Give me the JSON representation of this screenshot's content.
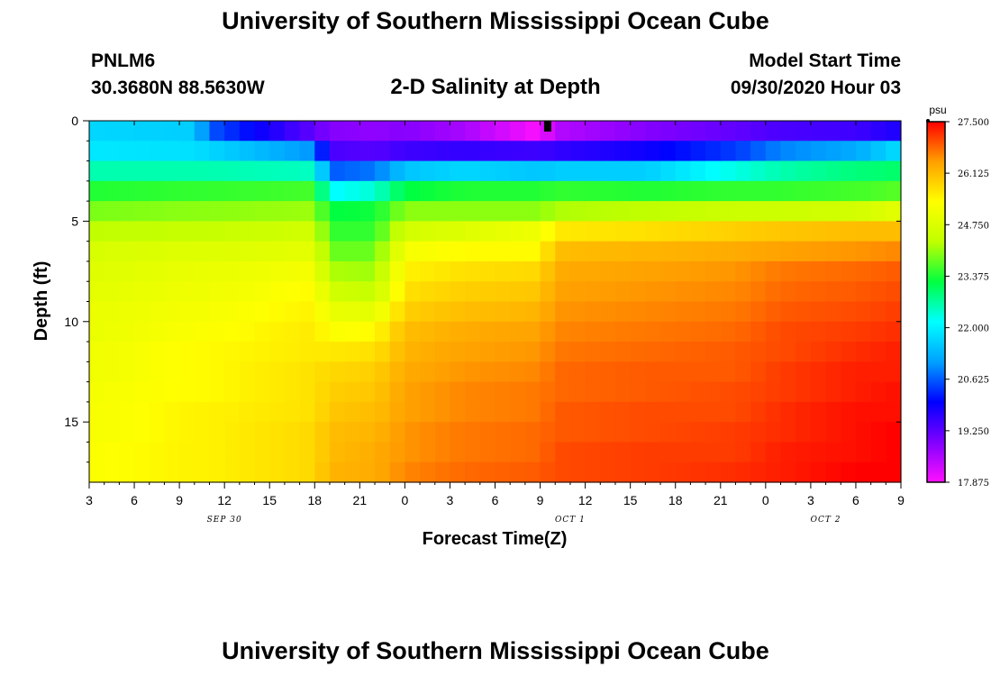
{
  "header": {
    "title": "University of Southern Mississippi Ocean Cube",
    "station_id": "PNLM6",
    "station_coords": "30.3680N 88.5630W",
    "plot_title": "2-D Salinity at Depth",
    "start_label": "Model Start Time",
    "start_value": "09/30/2020 Hour 03"
  },
  "footer": {
    "title": "University of Southern Mississippi Ocean Cube"
  },
  "chart_data": {
    "type": "heatmap",
    "title": "2-D Salinity at Depth",
    "xlabel": "Forecast Time(Z)",
    "ylabel": "Depth (ft)",
    "units": "psu",
    "x_start_hour": 3,
    "x_end_hour": 57,
    "x_ticks": [
      {
        "hour": 3,
        "label": "3"
      },
      {
        "hour": 6,
        "label": "6"
      },
      {
        "hour": 9,
        "label": "9"
      },
      {
        "hour": 12,
        "label": "12"
      },
      {
        "hour": 15,
        "label": "15"
      },
      {
        "hour": 18,
        "label": "18"
      },
      {
        "hour": 21,
        "label": "21"
      },
      {
        "hour": 24,
        "label": "0"
      },
      {
        "hour": 27,
        "label": "3"
      },
      {
        "hour": 30,
        "label": "6"
      },
      {
        "hour": 33,
        "label": "9"
      },
      {
        "hour": 36,
        "label": "12"
      },
      {
        "hour": 39,
        "label": "15"
      },
      {
        "hour": 42,
        "label": "18"
      },
      {
        "hour": 45,
        "label": "21"
      },
      {
        "hour": 48,
        "label": "0"
      },
      {
        "hour": 51,
        "label": "3"
      },
      {
        "hour": 54,
        "label": "6"
      },
      {
        "hour": 57,
        "label": "9"
      }
    ],
    "date_labels": [
      {
        "hour": 12,
        "label": "SEP 30"
      },
      {
        "hour": 35,
        "label": "OCT 1"
      },
      {
        "hour": 52,
        "label": "OCT 2"
      }
    ],
    "ylim": [
      0,
      18
    ],
    "y_ticks": [
      0,
      5,
      10,
      15
    ],
    "depth_levels_ft": [
      0,
      1,
      2,
      3,
      4,
      5,
      6,
      7,
      8,
      9,
      10,
      11,
      12,
      13,
      14,
      15,
      16,
      17
    ],
    "profiles": [
      {
        "hour": 3,
        "values": [
          21.7,
          21.9,
          22.6,
          23.4,
          23.9,
          24.3,
          24.7,
          24.8,
          24.9,
          25.0,
          25.0,
          25.1,
          25.1,
          25.2,
          25.2,
          25.2,
          25.3,
          25.3
        ]
      },
      {
        "hour": 10,
        "values": [
          21.6,
          21.8,
          22.6,
          23.5,
          24.0,
          24.4,
          24.8,
          25.0,
          25.1,
          25.2,
          25.3,
          25.4,
          25.4,
          25.4,
          25.5,
          25.5,
          25.5,
          25.5
        ]
      },
      {
        "hour": 11,
        "values": [
          20.6,
          21.7,
          22.6,
          23.5,
          24.0,
          24.4,
          24.8,
          25.0,
          25.1,
          25.2,
          25.3,
          25.4,
          25.4,
          25.4,
          25.5,
          25.5,
          25.5,
          25.5
        ]
      },
      {
        "hour": 18,
        "values": [
          19.2,
          21.0,
          22.5,
          23.6,
          24.1,
          24.6,
          24.9,
          25.2,
          25.4,
          25.5,
          25.6,
          25.6,
          25.7,
          25.7,
          25.7,
          25.8,
          25.8,
          25.8
        ]
      },
      {
        "hour": 19,
        "values": [
          18.9,
          19.4,
          20.6,
          22.1,
          23.2,
          23.5,
          23.8,
          24.2,
          24.6,
          25.0,
          25.3,
          25.6,
          25.8,
          25.9,
          26.0,
          26.1,
          26.1,
          26.2
        ]
      },
      {
        "hour": 22,
        "values": [
          18.8,
          19.3,
          20.8,
          22.4,
          23.3,
          23.5,
          23.8,
          24.1,
          24.4,
          24.9,
          25.4,
          25.7,
          25.9,
          26.0,
          26.1,
          26.2,
          26.3,
          26.3
        ]
      },
      {
        "hour": 24,
        "values": [
          18.9,
          19.5,
          21.5,
          23.2,
          24.0,
          24.6,
          25.2,
          25.5,
          25.7,
          25.9,
          26.1,
          26.2,
          26.3,
          26.4,
          26.4,
          26.5,
          26.5,
          26.6
        ]
      },
      {
        "hour": 28,
        "values": [
          18.6,
          19.6,
          21.7,
          23.4,
          24.0,
          24.8,
          25.4,
          25.7,
          25.9,
          26.1,
          26.3,
          26.4,
          26.5,
          26.6,
          26.6,
          26.7,
          26.7,
          26.8
        ]
      },
      {
        "hour": 33,
        "values": [
          17.9,
          19.5,
          21.5,
          23.4,
          24.0,
          25.1,
          25.4,
          25.8,
          26.0,
          26.2,
          26.4,
          26.5,
          26.6,
          26.7,
          26.7,
          26.8,
          26.8,
          26.9
        ]
      },
      {
        "hour": 34,
        "values": [
          18.5,
          19.6,
          21.6,
          23.5,
          24.2,
          25.6,
          26.1,
          26.3,
          26.4,
          26.5,
          26.6,
          26.7,
          26.8,
          26.8,
          26.9,
          26.9,
          27.0,
          27.0
        ]
      },
      {
        "hour": 40,
        "values": [
          18.9,
          19.9,
          21.6,
          23.4,
          24.3,
          25.7,
          26.2,
          26.4,
          26.5,
          26.6,
          26.7,
          26.8,
          26.9,
          26.9,
          27.0,
          27.0,
          27.1,
          27.1
        ]
      },
      {
        "hour": 46,
        "values": [
          19.2,
          20.4,
          22.3,
          23.5,
          24.5,
          25.9,
          26.3,
          26.5,
          26.6,
          26.7,
          26.8,
          26.9,
          26.9,
          27.0,
          27.0,
          27.1,
          27.1,
          27.2
        ]
      },
      {
        "hour": 49,
        "values": [
          19.4,
          20.9,
          22.6,
          23.5,
          24.5,
          26.0,
          26.4,
          26.7,
          26.8,
          26.9,
          27.0,
          27.0,
          27.1,
          27.1,
          27.2,
          27.2,
          27.3,
          27.3
        ]
      },
      {
        "hour": 54,
        "values": [
          19.5,
          21.2,
          22.9,
          23.6,
          24.6,
          26.1,
          26.5,
          26.8,
          26.9,
          27.0,
          27.1,
          27.2,
          27.3,
          27.3,
          27.4,
          27.4,
          27.4,
          27.5
        ]
      },
      {
        "hour": 57,
        "values": [
          19.8,
          21.8,
          23.0,
          23.7,
          24.9,
          26.1,
          26.6,
          26.9,
          27.0,
          27.1,
          27.2,
          27.3,
          27.3,
          27.4,
          27.4,
          27.5,
          27.5,
          27.5
        ]
      }
    ],
    "marker": {
      "hour": 33.5,
      "depth_ft": 0
    },
    "colorbar": {
      "label": "psu",
      "min": 17.875,
      "max": 27.5,
      "tick_values": [
        17.875,
        19.25,
        20.625,
        22.0,
        23.375,
        24.75,
        26.125,
        27.5
      ],
      "tick_labels": [
        "17.875",
        "19.250",
        "20.625",
        "22.000",
        "23.375",
        "24.750",
        "26.125",
        "27.500"
      ],
      "colors": [
        "#ff10ff",
        "#8000ff",
        "#0000ff",
        "#00a0ff",
        "#00ffff",
        "#00ff40",
        "#c0ff00",
        "#ffff00",
        "#ffa000",
        "#ff0000"
      ]
    }
  }
}
